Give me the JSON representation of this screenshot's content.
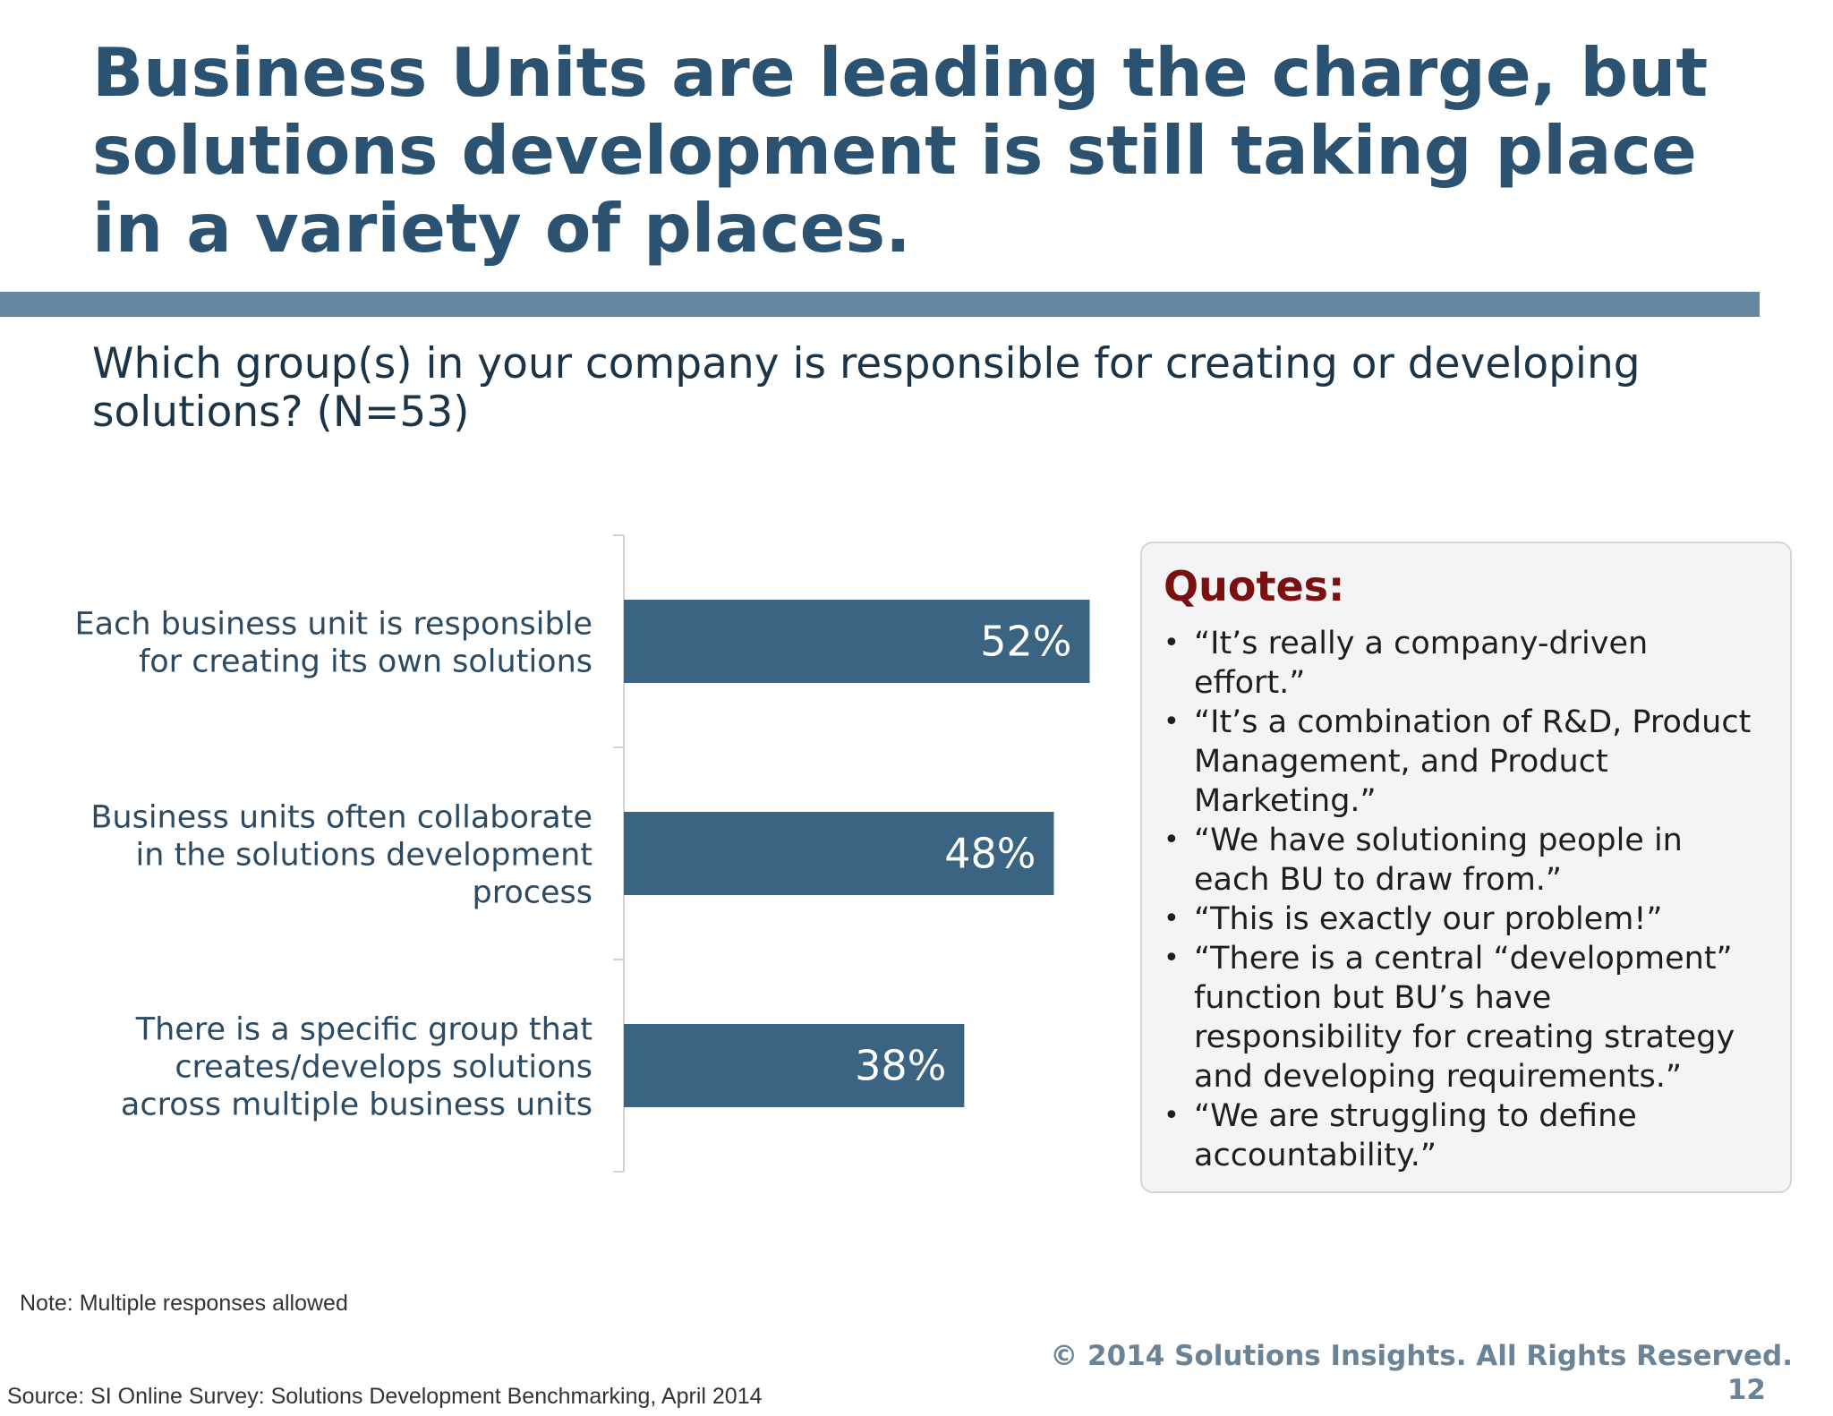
{
  "slide": {
    "title": "Business Units are leading the charge, but solutions development is still taking place in a variety of places.",
    "question": "Which group(s) in your company is responsible for creating or developing solutions?  (N=53)",
    "note": "Note: Multiple responses allowed",
    "source": "Source: SI Online Survey: Solutions Development Benchmarking, April 2014",
    "copyright": "© 2014 Solutions Insights. All Rights Reserved.",
    "page_number": "12"
  },
  "quotes": {
    "heading": "Quotes:",
    "bullet": "•",
    "items": [
      "“It’s really a company-driven effort.”",
      "“It’s a combination of R&D, Product Management, and Product Marketing.”",
      "“We have solutioning people in each BU to draw from.”",
      "“This is exactly our problem!”",
      "“There is a central “development” function but BU’s have responsibility for creating strategy and developing requirements.”",
      "“We are struggling to define accountability.”"
    ]
  },
  "chart_data": {
    "type": "bar",
    "orientation": "horizontal",
    "categories": [
      "Each business unit is responsible for creating its own solutions",
      "Business units often collaborate in the solutions development process",
      "There is a specific group that creates/develops solutions across multiple business units"
    ],
    "category_lines": [
      [
        "Each business unit is responsible",
        "for creating its own solutions"
      ],
      [
        "Business units often collaborate",
        "in the solutions development",
        "process"
      ],
      [
        "There is a specific group that",
        "creates/develops solutions",
        "across multiple business units"
      ]
    ],
    "values": [
      52,
      48,
      38
    ],
    "data_labels": [
      "52%",
      "48%",
      "38%"
    ],
    "unit": "%",
    "xlim": [
      0,
      100
    ],
    "grid": false,
    "legend": "none",
    "colors": {
      "bar": "#3a6482",
      "data_label": "#ffffff",
      "category_label": "#2b4a64",
      "axis": "#d2d2d2"
    }
  },
  "colors": {
    "title": "#2b5270",
    "rule": "#6589a2",
    "quotes_heading": "#7b1010",
    "footer": "#6a8397"
  }
}
